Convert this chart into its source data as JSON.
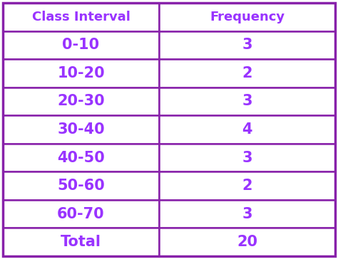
{
  "col_headers": [
    "Class Interval",
    "Frequency"
  ],
  "rows": [
    [
      "0-10",
      "3"
    ],
    [
      "10-20",
      "2"
    ],
    [
      "20-30",
      "3"
    ],
    [
      "30-40",
      "4"
    ],
    [
      "40-50",
      "3"
    ],
    [
      "50-60",
      "2"
    ],
    [
      "60-70",
      "3"
    ],
    [
      "Total",
      "20"
    ]
  ],
  "cell_bg": "#FFFFFF",
  "cell_text_color": "#9933FF",
  "border_color": "#8822AA",
  "header_fontsize": 13,
  "cell_fontsize": 15,
  "fig_bg": "#FFFFFF",
  "outer_border_color": "#8822AA",
  "col_split": 0.47
}
